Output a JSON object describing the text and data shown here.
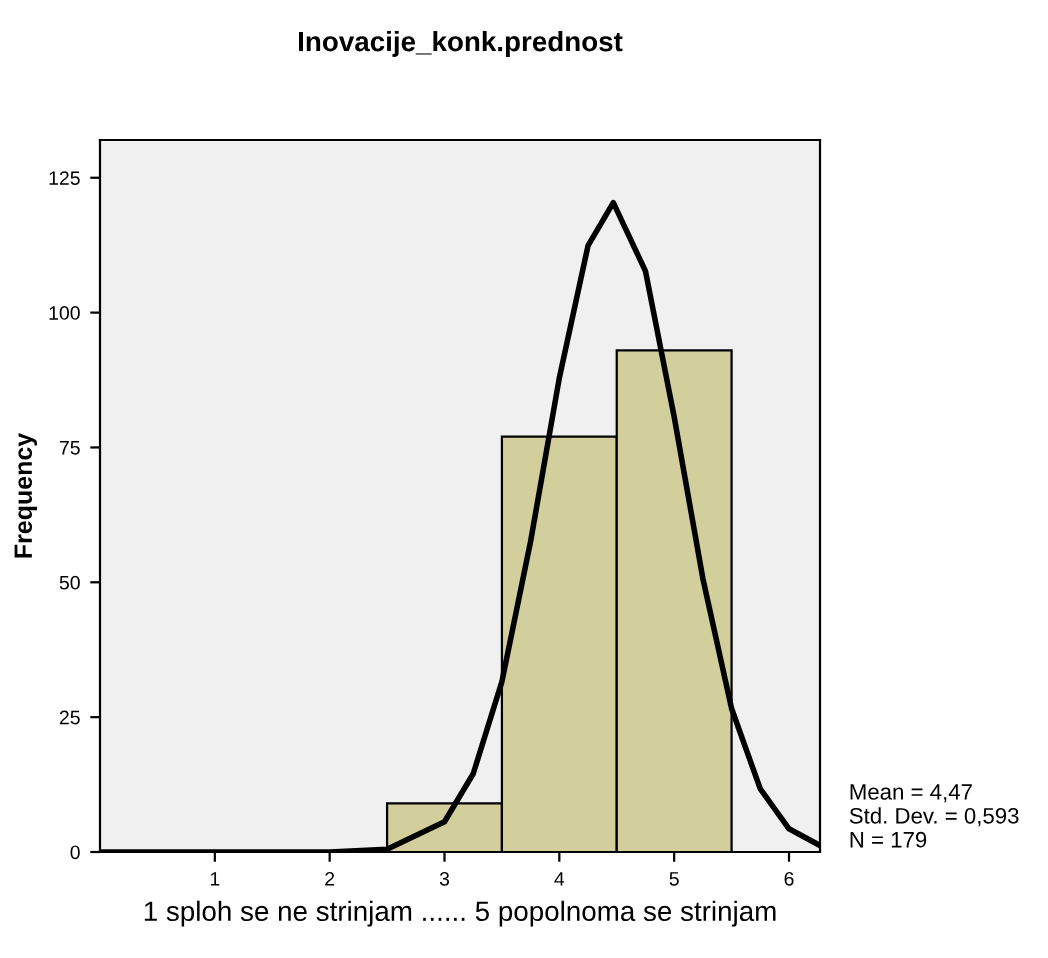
{
  "chart_data": {
    "type": "histogram",
    "title": "Inovacije_konk.prednost",
    "xlabel": "1 sploh se ne strinjam ...... 5 popolnoma se strinjam",
    "ylabel": "Frequency",
    "bins": [
      2.5,
      3.5,
      4.5,
      5.5
    ],
    "values": [
      9,
      77,
      93
    ],
    "color": "#d3cf9c",
    "series": [
      {
        "type": "line",
        "color": "#000000",
        "x": [
          0,
          2,
          2.5,
          3,
          3.25,
          3.5,
          3.75,
          4,
          4.25,
          4.47,
          4.75,
          5,
          5.25,
          5.5,
          5.75,
          6,
          6.27
        ],
        "values": [
          0,
          0,
          0.5,
          5.6,
          14.5,
          31.6,
          57.6,
          87.9,
          112.4,
          120.4,
          107.7,
          80.7,
          50.7,
          26.6,
          11.7,
          4.3,
          1.2
        ]
      }
    ],
    "xlim": [
      0,
      6.27
    ],
    "ylim": [
      0,
      132
    ],
    "xticks": [
      1,
      2,
      3,
      4,
      5,
      6
    ],
    "yticks": [
      0,
      25,
      50,
      75,
      100,
      125
    ],
    "grid": false,
    "legend": false,
    "annotations": [
      "Mean = 4,47\nStd. Dev. = 0,593\nN = 179"
    ]
  }
}
